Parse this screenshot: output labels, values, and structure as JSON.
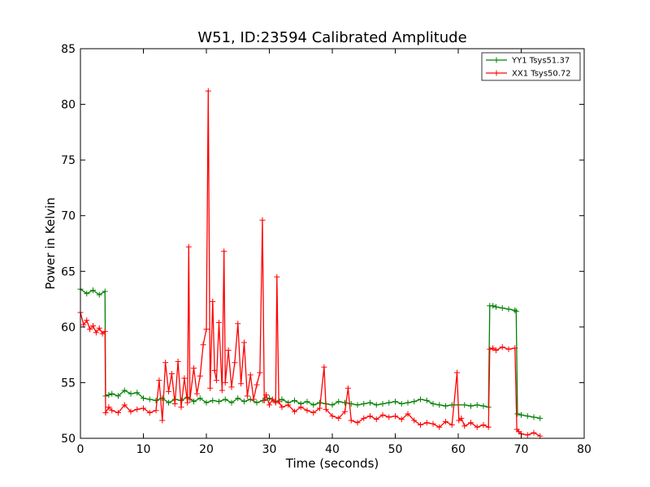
{
  "chart_data": {
    "type": "line",
    "title": "W51, ID:23594 Calibrated Amplitude",
    "xlabel": "Time (seconds)",
    "ylabel": "Power in Kelvin",
    "xlim": [
      0,
      80
    ],
    "ylim": [
      50,
      85
    ],
    "xticks": [
      0,
      10,
      20,
      30,
      40,
      50,
      60,
      70,
      80
    ],
    "yticks": [
      50,
      55,
      60,
      65,
      70,
      75,
      80,
      85
    ],
    "grid": false,
    "legend_position": "top-right",
    "marker": "+",
    "series": [
      {
        "name": "YY1 Tsys51.37",
        "color": "#008000",
        "x": [
          0,
          1,
          2,
          3,
          3.9,
          4.0,
          4.5,
          5,
          6,
          7,
          8,
          9,
          10,
          11,
          12,
          13,
          14,
          15,
          16,
          17,
          18,
          19,
          20,
          21,
          22,
          23,
          24,
          25,
          26,
          27,
          28,
          29,
          30,
          31,
          32,
          33,
          34,
          35,
          36,
          37,
          38,
          39,
          40,
          41,
          42,
          43,
          44,
          45,
          46,
          47,
          48,
          49,
          50,
          51,
          52,
          53,
          54,
          55,
          56,
          57,
          58,
          59,
          60,
          61,
          62,
          63,
          64,
          64.8,
          65.0,
          65.5,
          66,
          67,
          68,
          69,
          69.2,
          69.4,
          70,
          71,
          72,
          73
        ],
        "y": [
          63.4,
          63.0,
          63.3,
          62.9,
          63.2,
          53.8,
          53.9,
          54.0,
          53.8,
          54.3,
          54.0,
          54.1,
          53.6,
          53.5,
          53.4,
          53.6,
          53.2,
          53.5,
          53.4,
          53.7,
          53.3,
          53.6,
          53.2,
          53.4,
          53.3,
          53.5,
          53.2,
          53.6,
          53.3,
          53.5,
          53.2,
          53.4,
          53.6,
          53.3,
          53.5,
          53.2,
          53.4,
          53.1,
          53.3,
          53.0,
          53.2,
          53.1,
          53.0,
          53.3,
          53.2,
          53.1,
          53.0,
          53.1,
          53.2,
          53.0,
          53.1,
          53.2,
          53.3,
          53.1,
          53.2,
          53.3,
          53.5,
          53.4,
          53.1,
          53.0,
          52.9,
          53.0,
          53.0,
          53.0,
          52.9,
          53.0,
          52.9,
          52.8,
          61.9,
          61.9,
          61.8,
          61.7,
          61.6,
          61.5,
          61.4,
          52.2,
          52.1,
          52.0,
          51.9,
          51.8
        ]
      },
      {
        "name": "XX1 Tsys50.72",
        "color": "#ff0000",
        "x": [
          0,
          0.5,
          1,
          1.5,
          2,
          2.5,
          3,
          3.5,
          3.9,
          4.0,
          4.5,
          5,
          6,
          7,
          8,
          9,
          10,
          11,
          12,
          12.5,
          13,
          13.5,
          14,
          14.5,
          15,
          15.5,
          16,
          16.5,
          17,
          17.2,
          17.4,
          18,
          18.5,
          19,
          19.5,
          20,
          20.3,
          20.6,
          21,
          21.3,
          21.6,
          22,
          22.5,
          22.8,
          23,
          23.5,
          24,
          24.5,
          25,
          25.5,
          26,
          26.5,
          27,
          27.5,
          28,
          28.5,
          28.9,
          29.2,
          29.5,
          30,
          30.5,
          31,
          31.2,
          31.5,
          32,
          33,
          34,
          35,
          36,
          37,
          38,
          38.7,
          39,
          40,
          41,
          42,
          42.5,
          43,
          44,
          45,
          46,
          47,
          48,
          49,
          50,
          51,
          52,
          53,
          54,
          55,
          56,
          57,
          58,
          59,
          59.8,
          60.1,
          60.5,
          61,
          62,
          63,
          64,
          64.8,
          65.0,
          65.5,
          66,
          67,
          68,
          69,
          69.3,
          69.6,
          70,
          71,
          72,
          73
        ],
        "y": [
          61.3,
          60.2,
          60.6,
          59.8,
          60.1,
          59.5,
          59.9,
          59.4,
          59.6,
          52.3,
          52.8,
          52.5,
          52.3,
          53.0,
          52.4,
          52.6,
          52.7,
          52.3,
          52.5,
          55.2,
          51.6,
          56.8,
          54.2,
          55.8,
          53.1,
          56.9,
          52.8,
          55.4,
          53.2,
          67.2,
          53.5,
          56.3,
          54.0,
          55.6,
          58.4,
          59.8,
          81.2,
          54.5,
          62.3,
          56.1,
          55.2,
          60.4,
          54.3,
          66.8,
          55.0,
          57.9,
          54.6,
          56.8,
          60.3,
          54.9,
          58.6,
          53.8,
          55.7,
          53.5,
          54.8,
          55.9,
          69.6,
          53.4,
          53.9,
          53.0,
          53.5,
          53.2,
          64.5,
          53.3,
          52.8,
          53.0,
          52.4,
          52.8,
          52.5,
          52.3,
          52.7,
          56.4,
          52.6,
          52.0,
          51.8,
          52.4,
          54.5,
          51.6,
          51.4,
          51.8,
          52.0,
          51.7,
          52.1,
          51.9,
          52.0,
          51.7,
          52.2,
          51.6,
          51.2,
          51.4,
          51.3,
          51.0,
          51.5,
          51.2,
          55.9,
          51.6,
          51.8,
          51.1,
          51.4,
          51.0,
          51.2,
          51.0,
          58.0,
          58.1,
          57.9,
          58.2,
          58.0,
          58.1,
          50.8,
          50.6,
          50.4,
          50.3,
          50.5,
          50.2
        ]
      }
    ]
  }
}
